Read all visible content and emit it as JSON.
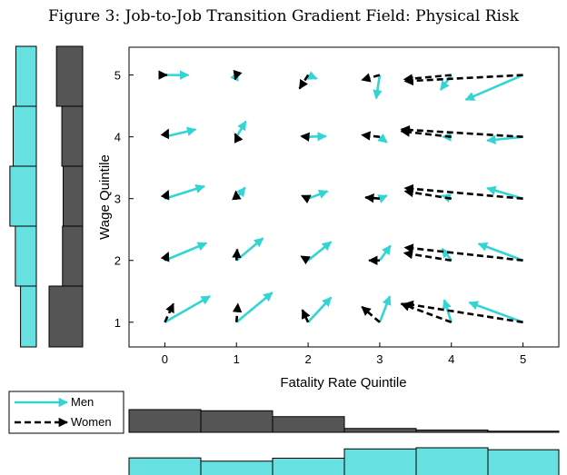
{
  "title": "Figure 3: Job-to-Job Transition Gradient Field: Physical Risk",
  "colors": {
    "men": "#33d4d4",
    "women": "#000000",
    "men_hist": "#66e0e0",
    "women_hist": "#555555"
  },
  "chart_data": {
    "type": "quiver",
    "xlabel": "Fatality Rate Quintile",
    "ylabel": "Wage Quintile",
    "xlim": [
      -0.5,
      5.5
    ],
    "ylim": [
      0.6,
      5.45
    ],
    "xticks": [
      "0",
      "1",
      "2",
      "3",
      "4",
      "5"
    ],
    "yticks": [
      "1",
      "2",
      "3",
      "4",
      "5"
    ],
    "legend": {
      "placement": "bottom-left",
      "entries": [
        "Men",
        "Women"
      ]
    },
    "series": [
      {
        "name": "Men",
        "style": "solid",
        "arrows": [
          {
            "x": 0,
            "y": 5,
            "dx": 0.33,
            "dy": 0.0
          },
          {
            "x": 1,
            "y": 5,
            "dx": 0.02,
            "dy": 0.05
          },
          {
            "x": 2,
            "y": 5,
            "dx": 0.12,
            "dy": -0.06
          },
          {
            "x": 3,
            "y": 5,
            "dx": -0.05,
            "dy": -0.38
          },
          {
            "x": 4,
            "y": 5,
            "dx": -0.15,
            "dy": -0.24
          },
          {
            "x": 5,
            "y": 5,
            "dx": -0.8,
            "dy": -0.4
          },
          {
            "x": 0,
            "y": 4,
            "dx": 0.43,
            "dy": 0.12
          },
          {
            "x": 1,
            "y": 4,
            "dx": 0.13,
            "dy": 0.25
          },
          {
            "x": 2,
            "y": 4,
            "dx": 0.25,
            "dy": 0.01
          },
          {
            "x": 3,
            "y": 4,
            "dx": 0.1,
            "dy": -0.09
          },
          {
            "x": 4,
            "y": 4,
            "dx": -0.12,
            "dy": 0.0
          },
          {
            "x": 5,
            "y": 4,
            "dx": -0.5,
            "dy": -0.06
          },
          {
            "x": 0,
            "y": 3,
            "dx": 0.55,
            "dy": 0.2
          },
          {
            "x": 1,
            "y": 3,
            "dx": 0.12,
            "dy": 0.18
          },
          {
            "x": 2,
            "y": 3,
            "dx": 0.27,
            "dy": 0.12
          },
          {
            "x": 3,
            "y": 3,
            "dx": 0.1,
            "dy": 0.05
          },
          {
            "x": 4,
            "y": 3,
            "dx": -0.13,
            "dy": 0.05
          },
          {
            "x": 5,
            "y": 3,
            "dx": -0.5,
            "dy": 0.17
          },
          {
            "x": 0,
            "y": 2,
            "dx": 0.58,
            "dy": 0.28
          },
          {
            "x": 1,
            "y": 2,
            "dx": 0.37,
            "dy": 0.36
          },
          {
            "x": 2,
            "y": 2,
            "dx": 0.32,
            "dy": 0.3
          },
          {
            "x": 3,
            "y": 2,
            "dx": 0.15,
            "dy": 0.24
          },
          {
            "x": 4,
            "y": 2,
            "dx": -0.13,
            "dy": 0.19
          },
          {
            "x": 5,
            "y": 2,
            "dx": -0.62,
            "dy": 0.27
          },
          {
            "x": 0,
            "y": 1,
            "dx": 0.63,
            "dy": 0.42
          },
          {
            "x": 1,
            "y": 1,
            "dx": 0.5,
            "dy": 0.48
          },
          {
            "x": 2,
            "y": 1,
            "dx": 0.32,
            "dy": 0.4
          },
          {
            "x": 3,
            "y": 1,
            "dx": 0.14,
            "dy": 0.42
          },
          {
            "x": 4,
            "y": 1,
            "dx": -0.1,
            "dy": 0.36
          },
          {
            "x": 5,
            "y": 1,
            "dx": -0.75,
            "dy": 0.32
          }
        ]
      },
      {
        "name": "Women",
        "style": "dashed",
        "arrows": [
          {
            "x": 0,
            "y": 5,
            "dx": 0.03,
            "dy": 0.0
          },
          {
            "x": 1,
            "y": 5,
            "dx": -0.02,
            "dy": -0.07
          },
          {
            "x": 2,
            "y": 5,
            "dx": -0.12,
            "dy": -0.22
          },
          {
            "x": 3,
            "y": 5,
            "dx": -0.25,
            "dy": -0.08
          },
          {
            "x": 4,
            "y": 5,
            "dx": -0.66,
            "dy": -0.07
          },
          {
            "x": 5,
            "y": 5,
            "dx": -1.65,
            "dy": -0.1
          },
          {
            "x": 0,
            "y": 4,
            "dx": 0.05,
            "dy": 0.12
          },
          {
            "x": 1,
            "y": 4,
            "dx": -0.02,
            "dy": 0.05
          },
          {
            "x": 2,
            "y": 4,
            "dx": -0.1,
            "dy": 0.01
          },
          {
            "x": 3,
            "y": 4,
            "dx": -0.25,
            "dy": 0.03
          },
          {
            "x": 4,
            "y": 4,
            "dx": -0.7,
            "dy": 0.09
          },
          {
            "x": 5,
            "y": 4,
            "dx": -1.7,
            "dy": 0.12
          },
          {
            "x": 0,
            "y": 3,
            "dx": 0.05,
            "dy": 0.13
          },
          {
            "x": 1,
            "y": 3,
            "dx": -0.01,
            "dy": 0.12
          },
          {
            "x": 2,
            "y": 3,
            "dx": -0.09,
            "dy": 0.05
          },
          {
            "x": 3,
            "y": 3,
            "dx": -0.2,
            "dy": 0.02
          },
          {
            "x": 4,
            "y": 3,
            "dx": -0.65,
            "dy": 0.12
          },
          {
            "x": 5,
            "y": 3,
            "dx": -1.65,
            "dy": 0.17
          },
          {
            "x": 0,
            "y": 2,
            "dx": 0.05,
            "dy": 0.13
          },
          {
            "x": 1,
            "y": 2,
            "dx": 0.01,
            "dy": 0.18
          },
          {
            "x": 2,
            "y": 2,
            "dx": -0.1,
            "dy": 0.07
          },
          {
            "x": 3,
            "y": 2,
            "dx": -0.15,
            "dy": 0.0
          },
          {
            "x": 4,
            "y": 2,
            "dx": -0.66,
            "dy": 0.12
          },
          {
            "x": 5,
            "y": 2,
            "dx": -1.65,
            "dy": 0.21
          },
          {
            "x": 0,
            "y": 1,
            "dx": 0.12,
            "dy": 0.3
          },
          {
            "x": 1,
            "y": 1,
            "dx": 0.02,
            "dy": 0.3
          },
          {
            "x": 2,
            "y": 1,
            "dx": -0.08,
            "dy": 0.2
          },
          {
            "x": 3,
            "y": 1,
            "dx": -0.25,
            "dy": 0.25
          },
          {
            "x": 4,
            "y": 1,
            "dx": -0.7,
            "dy": 0.3
          },
          {
            "x": 5,
            "y": 1,
            "dx": -1.65,
            "dy": 0.3
          }
        ]
      }
    ],
    "marginal_wage": {
      "orientation": "horizontal",
      "categories": [
        "1",
        "2",
        "3",
        "4",
        "5"
      ],
      "men": [
        0.58,
        0.77,
        0.97,
        0.85,
        0.75
      ],
      "women": [
        1.0,
        0.6,
        0.58,
        0.62,
        0.78
      ]
    },
    "marginal_fatality": {
      "orientation": "vertical",
      "categories": [
        "0",
        "1",
        "2",
        "3",
        "4",
        "5"
      ],
      "men": [
        0.38,
        0.18,
        0.36,
        0.93,
        1.0,
        0.88
      ],
      "women": [
        1.0,
        0.95,
        0.69,
        0.17,
        0.1,
        0.05
      ]
    }
  }
}
